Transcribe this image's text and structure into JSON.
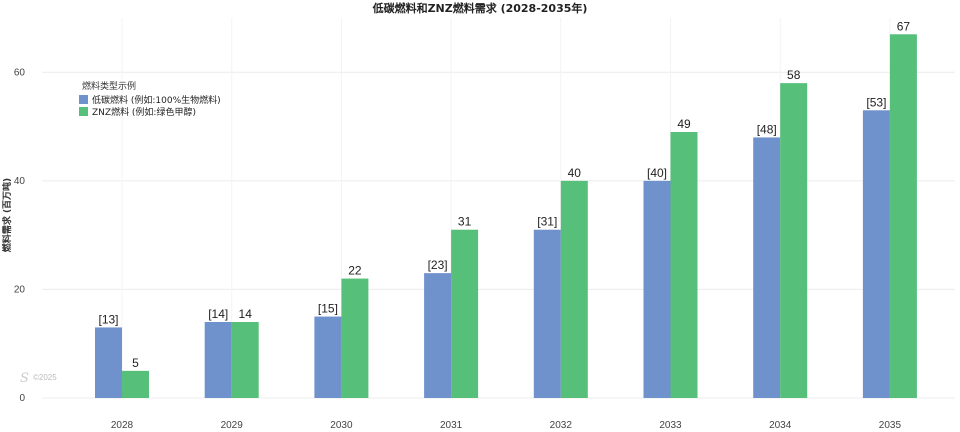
{
  "chart_data": {
    "type": "bar",
    "title": "低碳燃料和ZNZ燃料需求 (2028-2035年)",
    "ylabel": "燃料需求 (百万吨)",
    "xlabel": "",
    "categories": [
      "2028",
      "2029",
      "2030",
      "2031",
      "2032",
      "2033",
      "2034",
      "2035"
    ],
    "ylim": [
      0,
      70
    ],
    "yticks": [
      0,
      20,
      40,
      60
    ],
    "grid": true,
    "legend": {
      "title": "燃料类型示例",
      "position": "top-left"
    },
    "series": [
      {
        "name": "低碳燃料 (例如:100%生物燃料)",
        "values": [
          13,
          14,
          15,
          23,
          31,
          40,
          48,
          53
        ],
        "labels": [
          "[13]",
          "[14]",
          "[15]",
          "[23]",
          "[31]",
          "[40]",
          "[48]",
          "[53]"
        ],
        "color": "#6F91CC"
      },
      {
        "name": "ZNZ燃料 (例如:绿色甲醇)",
        "values": [
          5,
          14,
          22,
          31,
          40,
          49,
          58,
          67
        ],
        "labels": [
          "5",
          "14",
          "22",
          "31",
          "40",
          "49",
          "58",
          "67"
        ],
        "color": "#56BF79"
      }
    ],
    "watermark": "©2025"
  }
}
